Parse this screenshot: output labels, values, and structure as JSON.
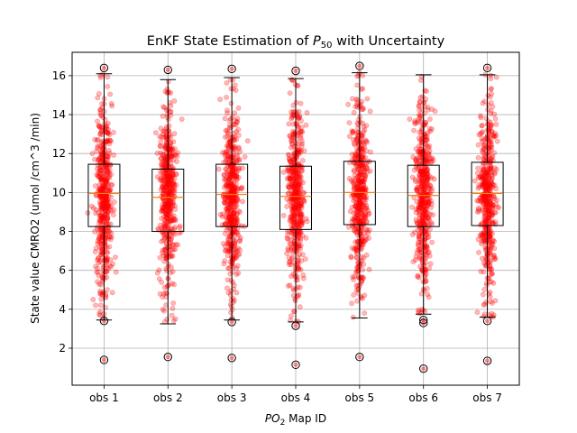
{
  "chart_data": {
    "type": "box",
    "title_main": "EnKF State Estimation of ",
    "title_var": "P",
    "title_sub": "50",
    "title_tail": " with Uncertainty",
    "xlabel_var": "PO",
    "xlabel_sub": "2",
    "xlabel_tail": " Map ID",
    "ylabel": "State value CMRO2 (umol /cm^3 /min)",
    "categories": [
      "obs 1",
      "obs 2",
      "obs 3",
      "obs 4",
      "obs 5",
      "obs 6",
      "obs 7"
    ],
    "ylim": [
      0.1,
      17.2
    ],
    "yticks": [
      2,
      4,
      6,
      8,
      10,
      12,
      14,
      16
    ],
    "grid": true,
    "box_stats": [
      {
        "q1": 8.25,
        "median": 9.95,
        "q3": 11.45,
        "whislo": 3.45,
        "whishi": 16.1,
        "fliers": [
          16.4,
          3.4,
          1.4
        ]
      },
      {
        "q1": 8.0,
        "median": 9.75,
        "q3": 11.2,
        "whislo": 3.25,
        "whishi": 15.8,
        "fliers": [
          16.3,
          1.55
        ]
      },
      {
        "q1": 8.25,
        "median": 9.9,
        "q3": 11.45,
        "whislo": 3.45,
        "whishi": 15.9,
        "fliers": [
          16.35,
          3.35,
          1.5
        ]
      },
      {
        "q1": 8.1,
        "median": 9.8,
        "q3": 11.35,
        "whislo": 3.35,
        "whishi": 15.85,
        "fliers": [
          16.25,
          3.15,
          1.15
        ]
      },
      {
        "q1": 8.35,
        "median": 10.0,
        "q3": 11.6,
        "whislo": 3.55,
        "whishi": 16.15,
        "fliers": [
          16.5,
          1.55
        ]
      },
      {
        "q1": 8.25,
        "median": 9.85,
        "q3": 11.4,
        "whislo": 3.75,
        "whishi": 16.05,
        "fliers": [
          3.45,
          3.3,
          0.95
        ]
      },
      {
        "q1": 8.3,
        "median": 9.95,
        "q3": 11.55,
        "whislo": 3.6,
        "whishi": 16.05,
        "fliers": [
          16.4,
          3.4,
          1.35
        ]
      }
    ],
    "scatter": {
      "points_per_category": 500,
      "mean": 9.8,
      "std": 2.4,
      "color": "#ff0000"
    },
    "colors": {
      "box": "#000000",
      "median": "#ff7f0e",
      "grid": "#b0b0b0"
    }
  }
}
